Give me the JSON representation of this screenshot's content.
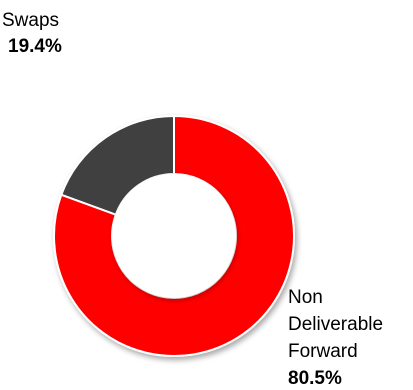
{
  "chart_data": {
    "type": "pie",
    "donut": true,
    "slices": [
      {
        "label": "Swaps",
        "value": 19.4,
        "value_label": "19.4%",
        "color": "#404040"
      },
      {
        "label_lines": [
          "Non",
          "Deliverable",
          "Forward"
        ],
        "value": 80.5,
        "value_label": "80.5%",
        "color": "#ff0000"
      }
    ]
  }
}
